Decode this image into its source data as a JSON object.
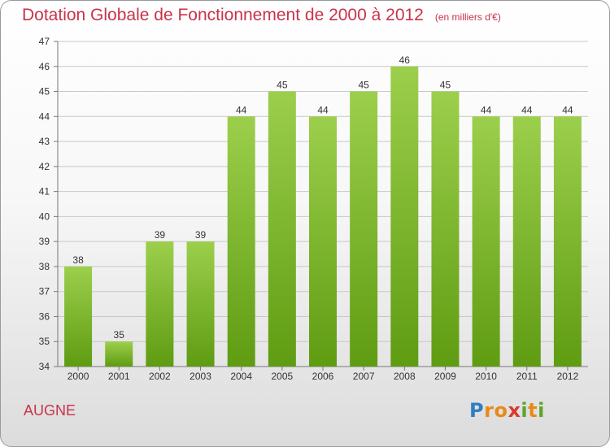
{
  "title": "Dotation Globale de Fonctionnement de 2000 à 2012",
  "unit": "(en milliers d'€)",
  "commune": "AUGNE",
  "logo": {
    "text": "Proxiti",
    "letters": [
      {
        "ch": "P",
        "color": "#2f7fc0"
      },
      {
        "ch": "r",
        "color": "#e88a1a"
      },
      {
        "ch": "o",
        "color": "#e88a1a"
      },
      {
        "ch": "x",
        "color": "#d93a2a"
      },
      {
        "ch": "i",
        "color": "#5aa52a"
      },
      {
        "ch": "t",
        "color": "#e88a1a"
      },
      {
        "ch": "i",
        "color": "#5aa52a"
      }
    ]
  },
  "colors": {
    "bar_top": "#9ccf4c",
    "bar_bottom": "#5f9c12",
    "grid": "#c8c8c8",
    "axis_text": "#333333",
    "title": "#c8334a"
  },
  "chart_data": {
    "type": "bar",
    "categories": [
      "2000",
      "2001",
      "2002",
      "2003",
      "2004",
      "2005",
      "2006",
      "2007",
      "2008",
      "2009",
      "2010",
      "2011",
      "2012"
    ],
    "values": [
      38,
      35,
      39,
      39,
      44,
      45,
      44,
      45,
      46,
      45,
      44,
      44,
      44
    ],
    "ylim": [
      34,
      47
    ],
    "yticks": [
      34,
      35,
      36,
      37,
      38,
      39,
      40,
      41,
      42,
      43,
      44,
      45,
      46,
      47
    ],
    "grid": true,
    "data_labels": true
  }
}
